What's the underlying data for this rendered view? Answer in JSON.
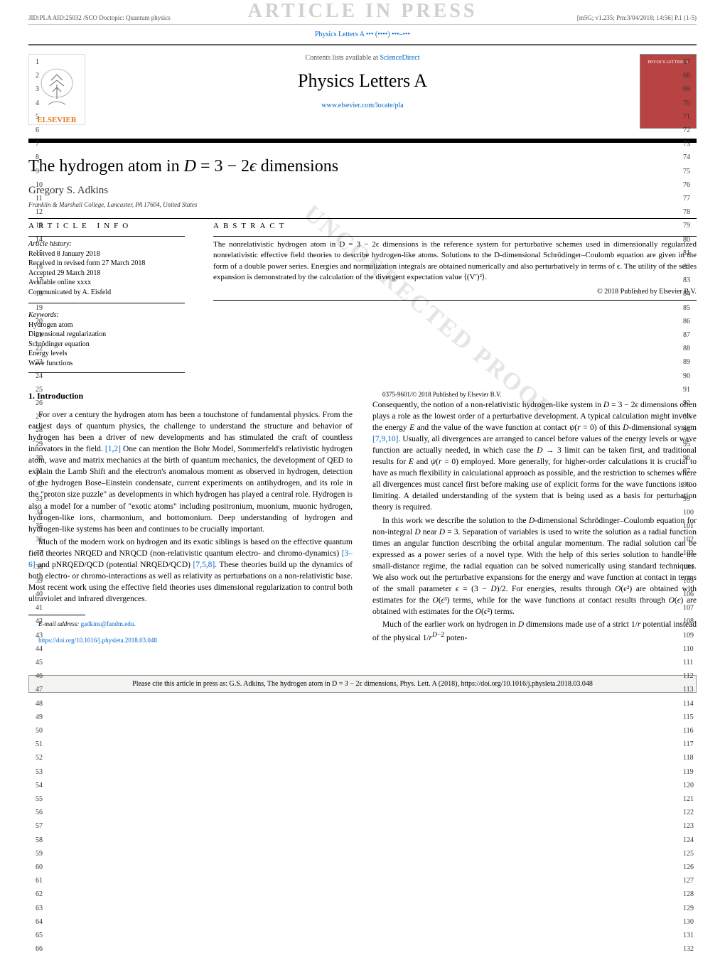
{
  "header": {
    "left": "JID:PLA    AID:25032 /SCO    Doctopic: Quantum physics",
    "right": "[m5G; v1.235; Prn:3/04/2018; 14:56] P.1 (1-5)",
    "banner": "ARTICLE IN PRESS",
    "journal_link": "Physics Letters A ••• (••••) •••–•••"
  },
  "title_card": {
    "contents_prefix": "Contents lists available at ",
    "science_direct": "ScienceDirect",
    "journal_name": "Physics Letters A",
    "journal_url": "www.elsevier.com/locate/pla",
    "elsevier_label": "ELSEVIER",
    "cover_label": "PHYSICS LETTERS A"
  },
  "article": {
    "title": "The hydrogen atom in D = 3 − 2ϵ dimensions",
    "author": "Gregory S. Adkins",
    "affiliation": "Franklin & Marshall College, Lancaster, PA 17604, United States"
  },
  "info": {
    "heading": "ARTICLE INFO",
    "history_label": "Article history:",
    "received": "Received 8 January 2018",
    "revised": "Received in revised form 27 March 2018",
    "accepted": "Accepted 29 March 2018",
    "online": "Available online xxxx",
    "communicated": "Communicated by A. Eisfeld",
    "keywords_label": "Keywords:",
    "keywords": [
      "Hydrogen atom",
      "Dimensional regularization",
      "Schrödinger equation",
      "Energy levels",
      "Wave functions"
    ]
  },
  "abstract": {
    "heading": "ABSTRACT",
    "text": "The nonrelativistic hydrogen atom in D = 3 − 2ϵ dimensions is the reference system for perturbative schemes used in dimensionally regularized nonrelativistic effective field theories to describe hydrogen-like atoms. Solutions to the D-dimensional Schrödinger–Coulomb equation are given in the form of a double power series. Energies and normalization integrals are obtained numerically and also perturbatively in terms of ϵ. The utility of the series expansion is demonstrated by the calculation of the divergent expectation value ⟨(V′)²⟩.",
    "copyright": "© 2018 Published by Elsevier B.V."
  },
  "body": {
    "section_heading": "1. Introduction",
    "p1": "For over a century the hydrogen atom has been a touchstone of fundamental physics. From the earliest days of quantum physics, the challenge to understand the structure and behavior of hydrogen has been a driver of new developments and has stimulated the craft of countless innovators in the field. [1,2] One can mention the Bohr Model, Sommerfeld's relativistic hydrogen atom, wave and matrix mechanics at the birth of quantum mechanics, the development of QED to explain the Lamb Shift and the electron's anomalous moment as observed in hydrogen, detection of the hydrogen Bose–Einstein condensate, current experiments on antihydrogen, and its role in the \"proton size puzzle\" as developments in which hydrogen has played a central role. Hydrogen is also a model for a number of \"exotic atoms\" including positronium, muonium, muonic hydrogen, hydrogen-like ions, charmonium, and bottomonium. Deep understanding of hydrogen and hydrogen-like systems has been and continues to be crucially important.",
    "p2": "Much of the modern work on hydrogen and its exotic siblings is based on the effective quantum field theories NRQED and NRQCD (non-relativistic quantum electro- and chromo-dynamics) [3–6] and pNRQED/QCD (potential NRQED/QCD) [7,5,8]. These theories build up the dynamics of both electro- or chromo-interactions as well as relativity as perturbations on a non-relativistic base. Most recent work using the effective field theories uses dimensional regularization to control both ultraviolet and infrared divergences.",
    "p3": "Consequently, the notion of a non-relativistic hydrogen-like system in D = 3 − 2ϵ dimensions often plays a role as the lowest order of a perturbative development. A typical calculation might involve the energy E and the value of the wave function at contact ψ(r = 0) of this D-dimensional system [7,9,10]. Usually, all divergences are arranged to cancel before values of the energy levels or wave function are actually needed, in which case the D → 3 limit can be taken first, and traditional results for E and ψ(r = 0) employed. More generally, for higher-order calculations it is crucial to have as much flexibility in calculational approach as possible, and the restriction to schemes where all divergences must cancel first before making use of explicit forms for the wave functions is too limiting. A detailed understanding of the system that is being used as a basis for perturbation theory is required.",
    "p4": "In this work we describe the solution to the D-dimensional Schrödinger–Coulomb equation for non-integral D near D = 3. Separation of variables is used to write the solution as a radial function times an angular function describing the orbital angular momentum. The radial solution can be expressed as a power series of a novel type. With the help of this series solution to handle the small-distance regime, the radial equation can be solved numerically using standard techniques. We also work out the perturbative expansions for the energy and wave function at contact in terms of the small parameter ϵ = (3 − D)/2. For energies, results through O(ϵ²) are obtained with estimates for the O(ϵ³) terms, while for the wave functions at contact results through O(ϵ) are obtained with estimates for the O(ϵ²) terms.",
    "p5": "Much of the earlier work on hydrogen in D dimensions made use of a strict 1/r potential instead of the physical 1/r^{D−2} poten-"
  },
  "footnote": {
    "email_label": "E-mail address: ",
    "email": "gadkins@fandm.edu",
    "doi": "https://doi.org/10.1016/j.physleta.2018.03.048",
    "copyright_line": "0375-9601/© 2018 Published by Elsevier B.V."
  },
  "cite_box": "Please cite this article in press as: G.S. Adkins, The hydrogen atom in D = 3 − 2ϵ dimensions, Phys. Lett. A (2018), https://doi.org/10.1016/j.physleta.2018.03.048",
  "line_numbers": {
    "left_start": 1,
    "left_end": 66,
    "right_start": 67,
    "right_end": 132
  },
  "watermark_diag": "UNCORRECTED PROOF",
  "colors": {
    "link": "#0066cc",
    "elsevier_orange": "#e67817",
    "cover_red": "#b84343",
    "watermark_gray": "#d0d0d0"
  }
}
